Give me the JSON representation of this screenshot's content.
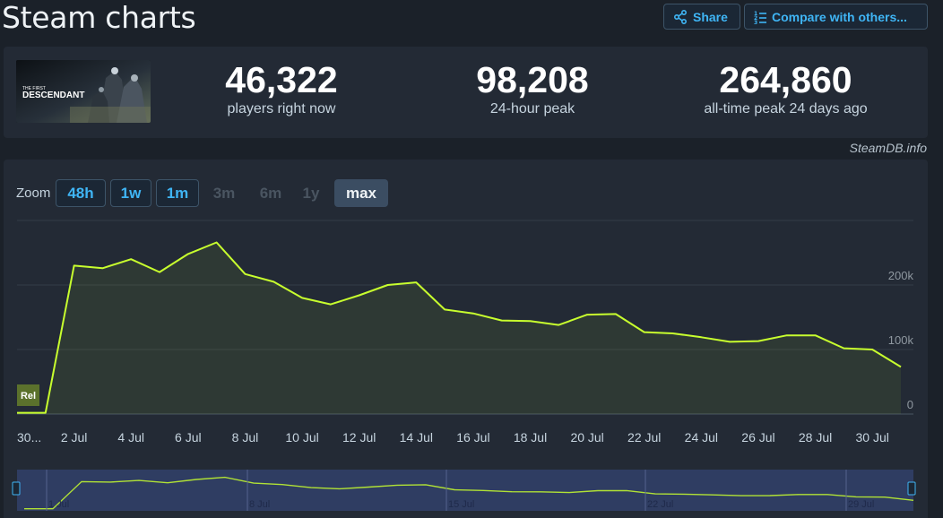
{
  "header": {
    "title": "Steam charts",
    "share_label": "Share",
    "compare_label": "Compare with others..."
  },
  "game": {
    "thumb_title_small": "THE FIRST",
    "thumb_title": "DESCENDANT"
  },
  "stats": {
    "now_value": "46,322",
    "now_label": "players right now",
    "peak24_value": "98,208",
    "peak24_label": "24-hour peak",
    "alltime_value": "264,860",
    "alltime_label": "all-time peak 24 days ago"
  },
  "credit": "SteamDB.info",
  "zoom": {
    "label": "Zoom",
    "options": [
      {
        "label": "48h",
        "state": "on"
      },
      {
        "label": "1w",
        "state": "on"
      },
      {
        "label": "1m",
        "state": "on"
      },
      {
        "label": "3m",
        "state": "off"
      },
      {
        "label": "6m",
        "state": "off"
      },
      {
        "label": "1y",
        "state": "off"
      },
      {
        "label": "max",
        "state": "sel"
      }
    ]
  },
  "chart_data": {
    "type": "area",
    "x": [
      "30 Jun",
      "1 Jul",
      "2 Jul",
      "3 Jul",
      "4 Jul",
      "5 Jul",
      "6 Jul",
      "7 Jul",
      "8 Jul",
      "9 Jul",
      "10 Jul",
      "11 Jul",
      "12 Jul",
      "13 Jul",
      "14 Jul",
      "15 Jul",
      "16 Jul",
      "17 Jul",
      "18 Jul",
      "19 Jul",
      "20 Jul",
      "21 Jul",
      "22 Jul",
      "23 Jul",
      "24 Jul",
      "25 Jul",
      "26 Jul",
      "27 Jul",
      "28 Jul",
      "29 Jul",
      "30 Jul",
      "31 Jul"
    ],
    "values": [
      2000,
      2000,
      230000,
      226000,
      240000,
      220000,
      248000,
      266000,
      217000,
      205000,
      180000,
      170000,
      184000,
      200000,
      204000,
      162000,
      156000,
      145000,
      144000,
      138000,
      154000,
      155000,
      127000,
      125000,
      119000,
      112000,
      113000,
      122000,
      122000,
      102000,
      100000,
      73000
    ],
    "x_ticks": [
      "30...",
      "2 Jul",
      "4 Jul",
      "6 Jul",
      "8 Jul",
      "10 Jul",
      "12 Jul",
      "14 Jul",
      "16 Jul",
      "18 Jul",
      "20 Jul",
      "22 Jul",
      "24 Jul",
      "26 Jul",
      "28 Jul",
      "30 Jul"
    ],
    "y_ticks": [
      "0",
      "100k",
      "200k"
    ],
    "ylim": [
      0,
      300000
    ],
    "grid": true,
    "line_color": "#c8ff2e",
    "annotation": "Rel",
    "navigator_ticks": [
      "1 Jul",
      "8 Jul",
      "15 Jul",
      "22 Jul",
      "29 Jul"
    ]
  }
}
